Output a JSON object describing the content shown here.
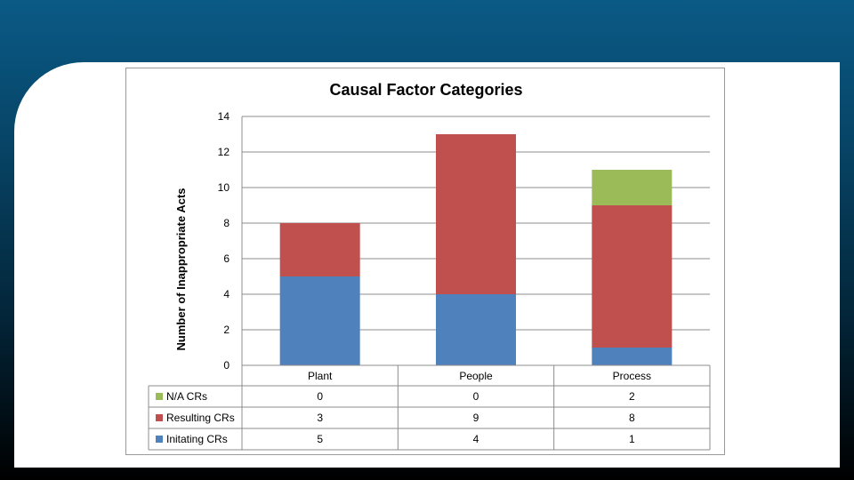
{
  "chart_data": {
    "type": "bar",
    "stacked": true,
    "title": "Causal Factor Categories",
    "ylabel": "Number of Inappropriate Acts",
    "xlabel": "",
    "ylim": [
      0,
      14
    ],
    "yticks": [
      0,
      2,
      4,
      6,
      8,
      10,
      12,
      14
    ],
    "grid": true,
    "categories": [
      "Plant",
      "People",
      "Process"
    ],
    "series": [
      {
        "name": "Initating CRs",
        "color": "#4f81bd",
        "values": [
          5,
          4,
          1
        ]
      },
      {
        "name": "Resulting CRs",
        "color": "#c0504d",
        "values": [
          3,
          9,
          8
        ]
      },
      {
        "name": "N/A CRs",
        "color": "#9bbb59",
        "values": [
          0,
          0,
          2
        ]
      }
    ],
    "data_table": true,
    "table_row_order": [
      "N/A CRs",
      "Resulting CRs",
      "Initating CRs"
    ]
  }
}
